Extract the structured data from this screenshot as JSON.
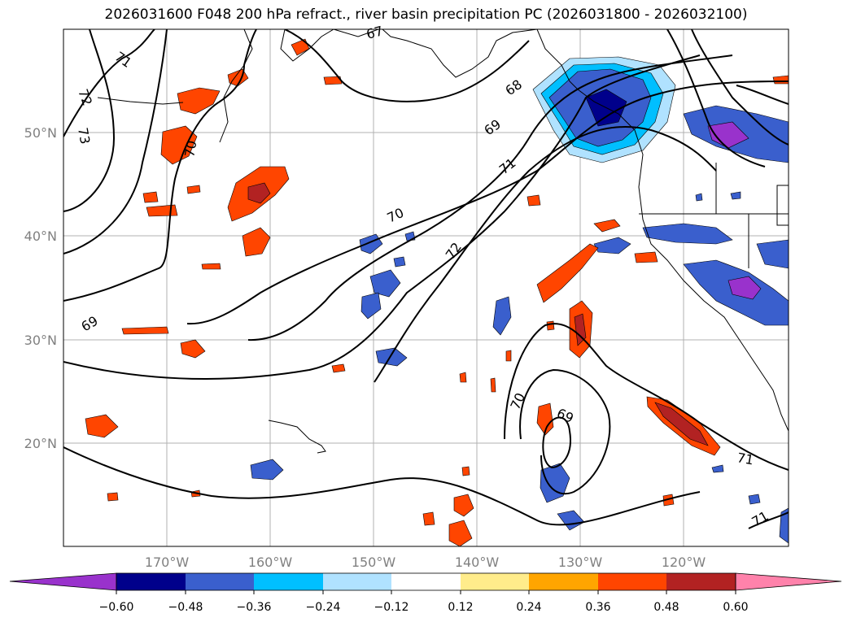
{
  "title": "2026031600 F048 200 hPa refract., river basin precipitation PC (2026031800 - 2026032100)",
  "map": {
    "lat_labels": [
      "50°N",
      "40°N",
      "30°N",
      "20°N"
    ],
    "lon_labels": [
      "170°W",
      "160°W",
      "150°W",
      "140°W",
      "130°W",
      "120°W"
    ],
    "contour_labels": [
      "71",
      "72",
      "73",
      "70",
      "69",
      "67",
      "68",
      "69",
      "71",
      "70",
      "72",
      "70",
      "69",
      "71",
      "71"
    ],
    "grid": true
  },
  "colorbar": {
    "ticks": [
      "−0.60",
      "−0.48",
      "−0.36",
      "−0.24",
      "−0.12",
      "0.12",
      "0.24",
      "0.36",
      "0.48",
      "0.60"
    ],
    "colors": [
      "#9932CC",
      "#00008B",
      "#3A5FCD",
      "#00BFFF",
      "#B0E2FF",
      "#FFFFFF",
      "#FFEC8B",
      "#FFA500",
      "#FF4500",
      "#B22222",
      "#FF82AB"
    ]
  }
}
